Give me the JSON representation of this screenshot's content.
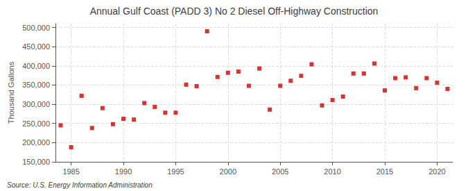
{
  "chart_data": {
    "type": "scatter",
    "title": "Annual Gulf Coast (PADD 3) No 2 Diesel Off-Highway Construction",
    "ylabel": "Thousand Gallons",
    "annotations": [
      "Source: U.S. Energy Information Administration"
    ],
    "x": [
      1984,
      1985,
      1986,
      1987,
      1988,
      1989,
      1990,
      1991,
      1992,
      1993,
      1994,
      1995,
      1996,
      1997,
      1998,
      1999,
      2000,
      2001,
      2002,
      2003,
      2004,
      2005,
      2006,
      2007,
      2008,
      2009,
      2010,
      2011,
      2012,
      2013,
      2014,
      2015,
      2016,
      2017,
      2018,
      2019,
      2020,
      2021
    ],
    "values": [
      245000,
      188000,
      322000,
      238000,
      290000,
      248000,
      262000,
      260000,
      303000,
      293000,
      278000,
      278000,
      351000,
      347000,
      490000,
      371000,
      382000,
      385000,
      348000,
      393000,
      286000,
      348000,
      361000,
      374000,
      404000,
      297000,
      311000,
      320000,
      380000,
      380000,
      406000,
      336000,
      368000,
      370000,
      342000,
      368000,
      356000,
      340000
    ],
    "color": "#cc0000",
    "marker": "square",
    "xlim": [
      1983.5,
      2021.5
    ],
    "ylim": [
      150000,
      510000
    ],
    "xticks": [
      1985,
      1990,
      1995,
      2000,
      2005,
      2010,
      2015,
      2020
    ],
    "yticks": [
      {
        "value": 150000,
        "label": "150,000"
      },
      {
        "value": 200000,
        "label": "200,000"
      },
      {
        "value": 250000,
        "label": "250,000"
      },
      {
        "value": 300000,
        "label": "300,000"
      },
      {
        "value": 350000,
        "label": "350,000"
      },
      {
        "value": 400000,
        "label": "400,000"
      },
      {
        "value": 450000,
        "label": "450,000"
      },
      {
        "value": 500000,
        "label": "500,000"
      }
    ],
    "grid": true
  }
}
